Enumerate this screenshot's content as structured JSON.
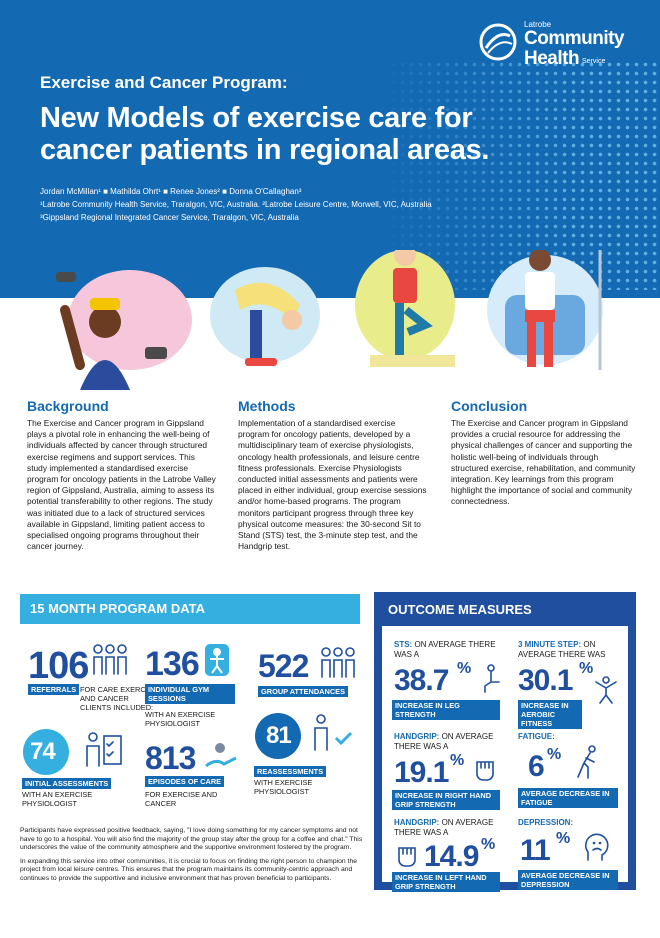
{
  "logo": {
    "line1": "Latrobe",
    "line2": "Community",
    "line3": "Health",
    "line4": "Service"
  },
  "header": {
    "eyebrow": "Exercise and Cancer Program:",
    "title_line1": "New Models of exercise care for",
    "title_line2": "cancer patients in regional areas.",
    "authors": "Jordan McMillan¹ ■ Mathilda Ohrt¹ ■ Renee Jones² ■ Donna O'Callaghan³",
    "affil1": "¹Latrobe Community Health Service, Traralgon, VIC, Australia. ²Latrobe Leisure Centre, Morwell, VIC, Australia",
    "affil2": "³Gippsland Regional Integrated Cancer Service, Traralgon, VIC, Australia"
  },
  "sections": {
    "background": {
      "title": "Background",
      "text": "The Exercise and Cancer program in Gippsland plays a pivotal role in enhancing the well-being of individuals affected by cancer through structured exercise regimens and support services. This study implemented a standardised exercise program for oncology patients in the Latrobe Valley region of Gippsland, Australia, aiming to assess its potential transferability to other regions. The study was initiated due to a lack of structured services available in Gippsland, limiting patient access to specialised ongoing programs throughout their cancer journey."
    },
    "methods": {
      "title": "Methods",
      "text": "Implementation of a standardised exercise program for oncology patients, developed by a multidisciplinary team of exercise physiologists, oncology health professionals, and leisure centre fitness professionals. Exercise Physiologists conducted initial assessments and patients were placed in either individual, group exercise sessions and/or home-based programs. The program monitors participant progress through three key physical outcome measures: the 30-second Sit to Stand (STS) test, the 3-minute step test, and the Handgrip test."
    },
    "conclusion": {
      "title": "Conclusion",
      "text": "The Exercise and Cancer program in Gippsland provides a crucial resource for addressing the physical challenges of cancer and supporting the holistic well-being of individuals through structured exercise, rehabilitation, and community integration. Key learnings from this program highlight the importance of social and community connectedness."
    }
  },
  "program_data": {
    "title": "15 MONTH PROGRAM DATA",
    "referrals": {
      "value": "106",
      "label": "REFERRALS",
      "sub": "FOR CARE EXERCISE AND CANCER CLIENTS INCLUDED:"
    },
    "gym": {
      "value": "136",
      "label": "INDIVIDUAL GYM SESSIONS",
      "sub": "WITH AN EXERCISE PHYSIOLOGIST"
    },
    "group": {
      "value": "522",
      "label": "GROUP ATTENDANCES"
    },
    "initial": {
      "value": "74",
      "label": "INITIAL ASSESSMENTS",
      "sub": "WITH AN EXERCISE PHYSIOLOGIST"
    },
    "episodes": {
      "value": "813",
      "label": "EPISODES OF CARE",
      "sub": "FOR EXERCISE AND CANCER"
    },
    "reassess": {
      "value": "81",
      "label": "REASSESSMENTS",
      "sub": "WITH EXERCISE PHYSIOLOGIST"
    }
  },
  "outcomes": {
    "title": "OUTCOME MEASURES",
    "sts": {
      "name": "STS:",
      "pre": "ON AVERAGE THERE WAS A",
      "value": "38.7",
      "unit": "%",
      "label": "INCREASE IN LEG STRENGTH"
    },
    "step": {
      "name": "3 MINUTE STEP:",
      "pre": "ON AVERAGE THERE WAS",
      "value": "30.1",
      "unit": "%",
      "label": "INCREASE IN AEROBIC FITNESS"
    },
    "grip_r": {
      "name": "HANDGRIP:",
      "pre": "ON AVERAGE THERE WAS A",
      "value": "19.1",
      "unit": "%",
      "label": "INCREASE IN RIGHT HAND GRIP STRENGTH"
    },
    "fatigue": {
      "name": "FATIGUE:",
      "value": "6",
      "unit": "%",
      "label": "AVERAGE DECREASE IN FATIGUE"
    },
    "grip_l": {
      "name": "HANDGRIP:",
      "pre": "ON AVERAGE THERE WAS A",
      "value": "14.9",
      "unit": "%",
      "label": "INCREASE IN LEFT HAND GRIP STRENGTH"
    },
    "depression": {
      "name": "DEPRESSION:",
      "value": "11",
      "unit": "%",
      "label": "AVERAGE DECREASE IN DEPRESSION"
    }
  },
  "footer": {
    "p1": "Participants have expressed positive feedback, saying, \"I love doing something for my cancer symptoms and not have to go to a hospital. You will also find the majority of the group stay after the group for a coffee and chat.\" This underscores the value of the community atmosphere and the supportive environment fostered by the program.",
    "p2": "In expanding this service into other communities, it is crucial to focus on finding the right person to champion the project from local leisure centres. This ensures that the program maintains its community-centric approach and continues to provide the supportive and inclusive environment that has proven beneficial to participants."
  },
  "colors": {
    "primary": "#1469b3",
    "accent": "#35aee0",
    "dark": "#1f4f9e"
  }
}
